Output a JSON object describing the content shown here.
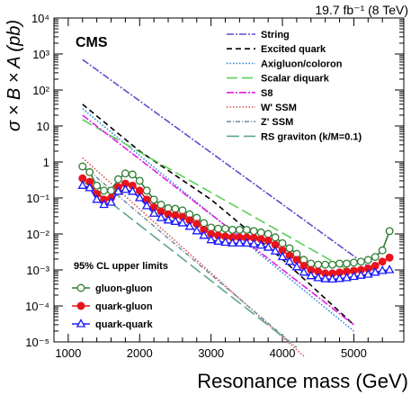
{
  "chart_data": {
    "type": "line",
    "lumi_label": "19.7 fb⁻¹ (8 TeV)",
    "experiment": "CMS",
    "xlabel": "Resonance mass (GeV)",
    "ylabel": "σ × B × A (pb)",
    "xlim": [
      800,
      5700
    ],
    "ylim": [
      1e-05,
      10000
    ],
    "yscale": "log",
    "xticks": [
      1000,
      2000,
      3000,
      4000,
      5000
    ],
    "xtick_labels": [
      "1000",
      "2000",
      "3000",
      "4000",
      "5000"
    ],
    "yticks": [
      1e-05,
      0.0001,
      0.001,
      0.01,
      0.1,
      1,
      10,
      100,
      1000,
      10000
    ],
    "ytick_labels": [
      "10⁻⁵",
      "10⁻⁴",
      "10⁻³",
      "10⁻²",
      "10⁻¹",
      "1",
      "10",
      "10²",
      "10³",
      "10⁴"
    ],
    "limits_title": "95% CL upper limits",
    "models": [
      {
        "name": "String",
        "color": "#5a4fcf",
        "dash": "8,2,2,2",
        "x": [
          1200,
          5300
        ],
        "y": [
          700,
          0.0009
        ]
      },
      {
        "name": "Excited quark",
        "color": "#000000",
        "dash": "6,4",
        "x": [
          1200,
          2000,
          3000,
          4000,
          5000
        ],
        "y": [
          40,
          2,
          0.09,
          0.002,
          3e-05
        ]
      },
      {
        "name": "Axigluon/coloron",
        "color": "#2e86de",
        "dash": "1.5,2",
        "x": [
          1200,
          5000
        ],
        "y": [
          30,
          2e-05
        ]
      },
      {
        "name": "Scalar diquark",
        "color": "#5ad05a",
        "dash": "12,5",
        "x": [
          1200,
          5000
        ],
        "y": [
          15,
          0.0008
        ]
      },
      {
        "name": "S8",
        "color": "#e020e0",
        "dash": "8,2,2,2",
        "x": [
          1200,
          5000
        ],
        "y": [
          20,
          3e-05
        ]
      },
      {
        "name": "W' SSM",
        "color": "#d9534f",
        "dash": "1.5,2",
        "x": [
          1200,
          4300
        ],
        "y": [
          1.3,
          4e-06
        ]
      },
      {
        "name": "Z' SSM",
        "color": "#7a8fa8",
        "dash": "5,2,1,2",
        "x": [
          1200,
          4200
        ],
        "y": [
          0.8,
          7e-06
        ]
      },
      {
        "name": "RS graviton (k/M=0.1)",
        "color": "#5fa58a",
        "dash": "14,5",
        "x": [
          1200,
          4100
        ],
        "y": [
          0.3,
          1e-05
        ]
      }
    ],
    "series": [
      {
        "name": "gluon-gluon",
        "color": "#2e7d32",
        "marker": "circle-open",
        "x": [
          1200,
          1300,
          1400,
          1500,
          1600,
          1700,
          1800,
          1900,
          2000,
          2100,
          2200,
          2300,
          2400,
          2500,
          2600,
          2700,
          2800,
          2900,
          3000,
          3100,
          3200,
          3300,
          3400,
          3500,
          3600,
          3700,
          3800,
          3900,
          4000,
          4100,
          4200,
          4300,
          4400,
          4500,
          4600,
          4700,
          4800,
          4900,
          5000,
          5100,
          5200,
          5300,
          5400,
          5500
        ],
        "y": [
          0.75,
          0.52,
          0.22,
          0.16,
          0.16,
          0.33,
          0.48,
          0.45,
          0.3,
          0.16,
          0.09,
          0.065,
          0.052,
          0.05,
          0.045,
          0.035,
          0.028,
          0.02,
          0.015,
          0.014,
          0.014,
          0.013,
          0.013,
          0.013,
          0.012,
          0.011,
          0.01,
          0.008,
          0.0055,
          0.004,
          0.0028,
          0.0019,
          0.0015,
          0.0014,
          0.0014,
          0.0014,
          0.0015,
          0.0015,
          0.0016,
          0.0017,
          0.0019,
          0.0023,
          0.0035,
          0.012
        ]
      },
      {
        "name": "quark-gluon",
        "color": "#e8141c",
        "marker": "circle-filled",
        "x": [
          1200,
          1300,
          1400,
          1500,
          1600,
          1700,
          1800,
          1900,
          2000,
          2100,
          2200,
          2300,
          2400,
          2500,
          2600,
          2700,
          2800,
          2900,
          3000,
          3100,
          3200,
          3300,
          3400,
          3500,
          3600,
          3700,
          3800,
          3900,
          4000,
          4100,
          4200,
          4300,
          4400,
          4500,
          4600,
          4700,
          4800,
          4900,
          5000,
          5100,
          5200,
          5300,
          5400,
          5500
        ],
        "y": [
          0.35,
          0.28,
          0.13,
          0.09,
          0.1,
          0.2,
          0.25,
          0.22,
          0.16,
          0.09,
          0.055,
          0.042,
          0.035,
          0.033,
          0.03,
          0.024,
          0.019,
          0.013,
          0.01,
          0.009,
          0.0085,
          0.008,
          0.008,
          0.008,
          0.0078,
          0.0072,
          0.0065,
          0.005,
          0.0035,
          0.0025,
          0.0019,
          0.0013,
          0.001,
          0.0009,
          0.0008,
          0.0008,
          0.00085,
          0.0009,
          0.00095,
          0.001,
          0.0011,
          0.0013,
          0.0017,
          0.0022
        ]
      },
      {
        "name": "quark-quark",
        "color": "#1a1aff",
        "marker": "triangle-open",
        "x": [
          1200,
          1300,
          1400,
          1500,
          1600,
          1700,
          1800,
          1900,
          2000,
          2100,
          2200,
          2300,
          2400,
          2500,
          2600,
          2700,
          2800,
          2900,
          3000,
          3100,
          3200,
          3300,
          3400,
          3500,
          3600,
          3700,
          3800,
          3900,
          4000,
          4100,
          4200,
          4300,
          4400,
          4500,
          4600,
          4700,
          4800,
          4900,
          5000,
          5100,
          5200,
          5300,
          5400,
          5500
        ],
        "y": [
          0.22,
          0.19,
          0.09,
          0.065,
          0.075,
          0.15,
          0.17,
          0.15,
          0.1,
          0.06,
          0.037,
          0.028,
          0.024,
          0.022,
          0.02,
          0.016,
          0.012,
          0.009,
          0.0068,
          0.0062,
          0.0058,
          0.0055,
          0.0055,
          0.0055,
          0.0052,
          0.0048,
          0.0042,
          0.0033,
          0.0023,
          0.0017,
          0.0012,
          0.00085,
          0.00068,
          0.0006,
          0.00056,
          0.00055,
          0.00057,
          0.0006,
          0.00065,
          0.0007,
          0.00075,
          0.00085,
          0.00095,
          0.001
        ]
      }
    ]
  }
}
